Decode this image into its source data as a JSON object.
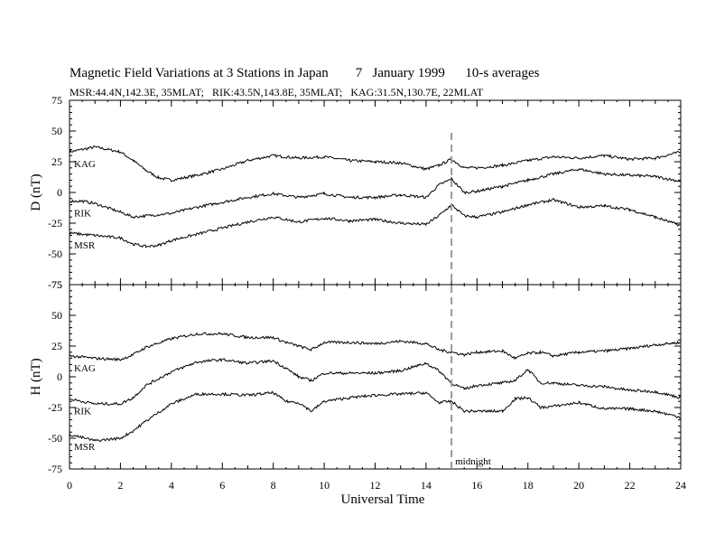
{
  "title": "Magnetic Field Variations at 3 Stations in Japan        7   January 1999      10-s averages",
  "subtitle": "MSR:44.4N,142.3E, 35MLAT;   RIK:43.5N,143.8E, 35MLAT;   KAG:31.5N,130.7E, 22MLAT",
  "chart_data": {
    "type": "line",
    "xlabel": "Universal Time",
    "xlim": [
      0,
      24
    ],
    "x_ticks": [
      "0",
      "2",
      "4",
      "6",
      "8",
      "10",
      "12",
      "14",
      "16",
      "18",
      "20",
      "22",
      "24"
    ],
    "annotation": {
      "x": 15,
      "label": "midnight"
    },
    "panels": [
      {
        "ylabel": "D (nT)",
        "ylim": [
          -75,
          75
        ],
        "y_ticks": [
          "75",
          "50",
          "25",
          "0",
          "-25",
          "-50",
          "-75"
        ],
        "series": [
          {
            "name": "KAG",
            "x": [
              0,
              1,
              2,
              2.5,
              3,
              3.5,
              4,
              5,
              6,
              7,
              8,
              9,
              10,
              11,
              12,
              13,
              14,
              14.5,
              15,
              15.5,
              16,
              17,
              18,
              19,
              20,
              21,
              22,
              23,
              24
            ],
            "values": [
              33,
              37,
              33,
              26,
              18,
              12,
              10,
              14,
              19,
              26,
              30,
              28,
              29,
              26,
              25,
              24,
              19,
              22,
              27,
              20,
              20,
              22,
              26,
              29,
              28,
              30,
              27,
              28,
              33
            ]
          },
          {
            "name": "RIK",
            "x": [
              0,
              0.5,
              1,
              2,
              2.5,
              3,
              4,
              5,
              6,
              7,
              8,
              9,
              10,
              11,
              12,
              13,
              14,
              14.5,
              15,
              15.5,
              16,
              17,
              18,
              19,
              20,
              21,
              22,
              23,
              24
            ],
            "values": [
              -7,
              -7,
              -9,
              -16,
              -20,
              -19,
              -17,
              -12,
              -8,
              -4,
              -1,
              -4,
              -1,
              -4,
              -4,
              -2,
              -4,
              6,
              11,
              0,
              1,
              5,
              10,
              15,
              19,
              15,
              14,
              13,
              9
            ]
          },
          {
            "name": "MSR",
            "x": [
              0,
              1,
              2,
              2.5,
              3,
              3.5,
              4,
              5,
              6,
              7,
              8,
              9,
              10,
              11,
              12,
              13,
              14,
              14.5,
              15,
              15.5,
              16,
              17,
              18,
              19,
              20,
              21,
              22,
              23,
              24
            ],
            "values": [
              -33,
              -35,
              -37,
              -42,
              -44,
              -43,
              -39,
              -34,
              -29,
              -24,
              -20,
              -24,
              -21,
              -23,
              -22,
              -25,
              -26,
              -19,
              -10,
              -19,
              -20,
              -16,
              -10,
              -6,
              -12,
              -11,
              -14,
              -20,
              -27
            ]
          }
        ]
      },
      {
        "ylabel": "H (nT)",
        "ylim": [
          -75,
          75
        ],
        "y_ticks": [
          "75",
          "50",
          "25",
          "0",
          "-25",
          "-50",
          "-75"
        ],
        "series": [
          {
            "name": "KAG",
            "x": [
              0,
              1,
              2,
              2.5,
              3,
              4,
              5,
              6,
              7,
              8,
              8.5,
              9,
              9.5,
              10,
              11,
              12,
              13,
              14,
              14.5,
              15,
              15.5,
              16,
              17,
              17.5,
              18,
              18.5,
              19,
              20,
              21,
              22,
              23,
              24
            ],
            "values": [
              17,
              15,
              14,
              18,
              24,
              31,
              35,
              35,
              32,
              32,
              28,
              25,
              22,
              28,
              28,
              27,
              29,
              27,
              22,
              20,
              18,
              20,
              21,
              15,
              19,
              20,
              17,
              20,
              21,
              23,
              26,
              28
            ]
          },
          {
            "name": "RIK",
            "x": [
              0,
              1,
              2,
              2.5,
              3,
              4,
              5,
              6,
              7,
              8,
              8.5,
              9,
              9.5,
              10,
              11,
              12,
              13,
              14,
              14.5,
              15,
              15.5,
              16,
              17,
              17.5,
              18,
              18.5,
              19,
              20,
              21,
              22,
              23,
              24
            ],
            "values": [
              -18,
              -22,
              -22,
              -17,
              -7,
              4,
              12,
              14,
              11,
              13,
              7,
              0,
              -3,
              3,
              3,
              3,
              5,
              11,
              5,
              -5,
              -10,
              -7,
              -5,
              -3,
              6,
              -5,
              -5,
              -7,
              -8,
              -11,
              -12,
              -17
            ]
          },
          {
            "name": "MSR",
            "x": [
              0,
              1,
              2,
              2.5,
              3,
              4,
              5,
              6,
              7,
              8,
              8.5,
              9,
              9.5,
              10,
              11,
              12,
              13,
              14,
              14.5,
              15,
              15.5,
              16,
              17,
              17.5,
              18,
              18.5,
              19,
              20,
              21,
              22,
              23,
              24
            ],
            "values": [
              -47,
              -52,
              -50,
              -44,
              -36,
              -22,
              -14,
              -14,
              -15,
              -13,
              -20,
              -21,
              -28,
              -20,
              -17,
              -15,
              -14,
              -13,
              -21,
              -20,
              -28,
              -28,
              -28,
              -18,
              -17,
              -25,
              -24,
              -21,
              -26,
              -26,
              -28,
              -33
            ]
          }
        ]
      }
    ]
  }
}
